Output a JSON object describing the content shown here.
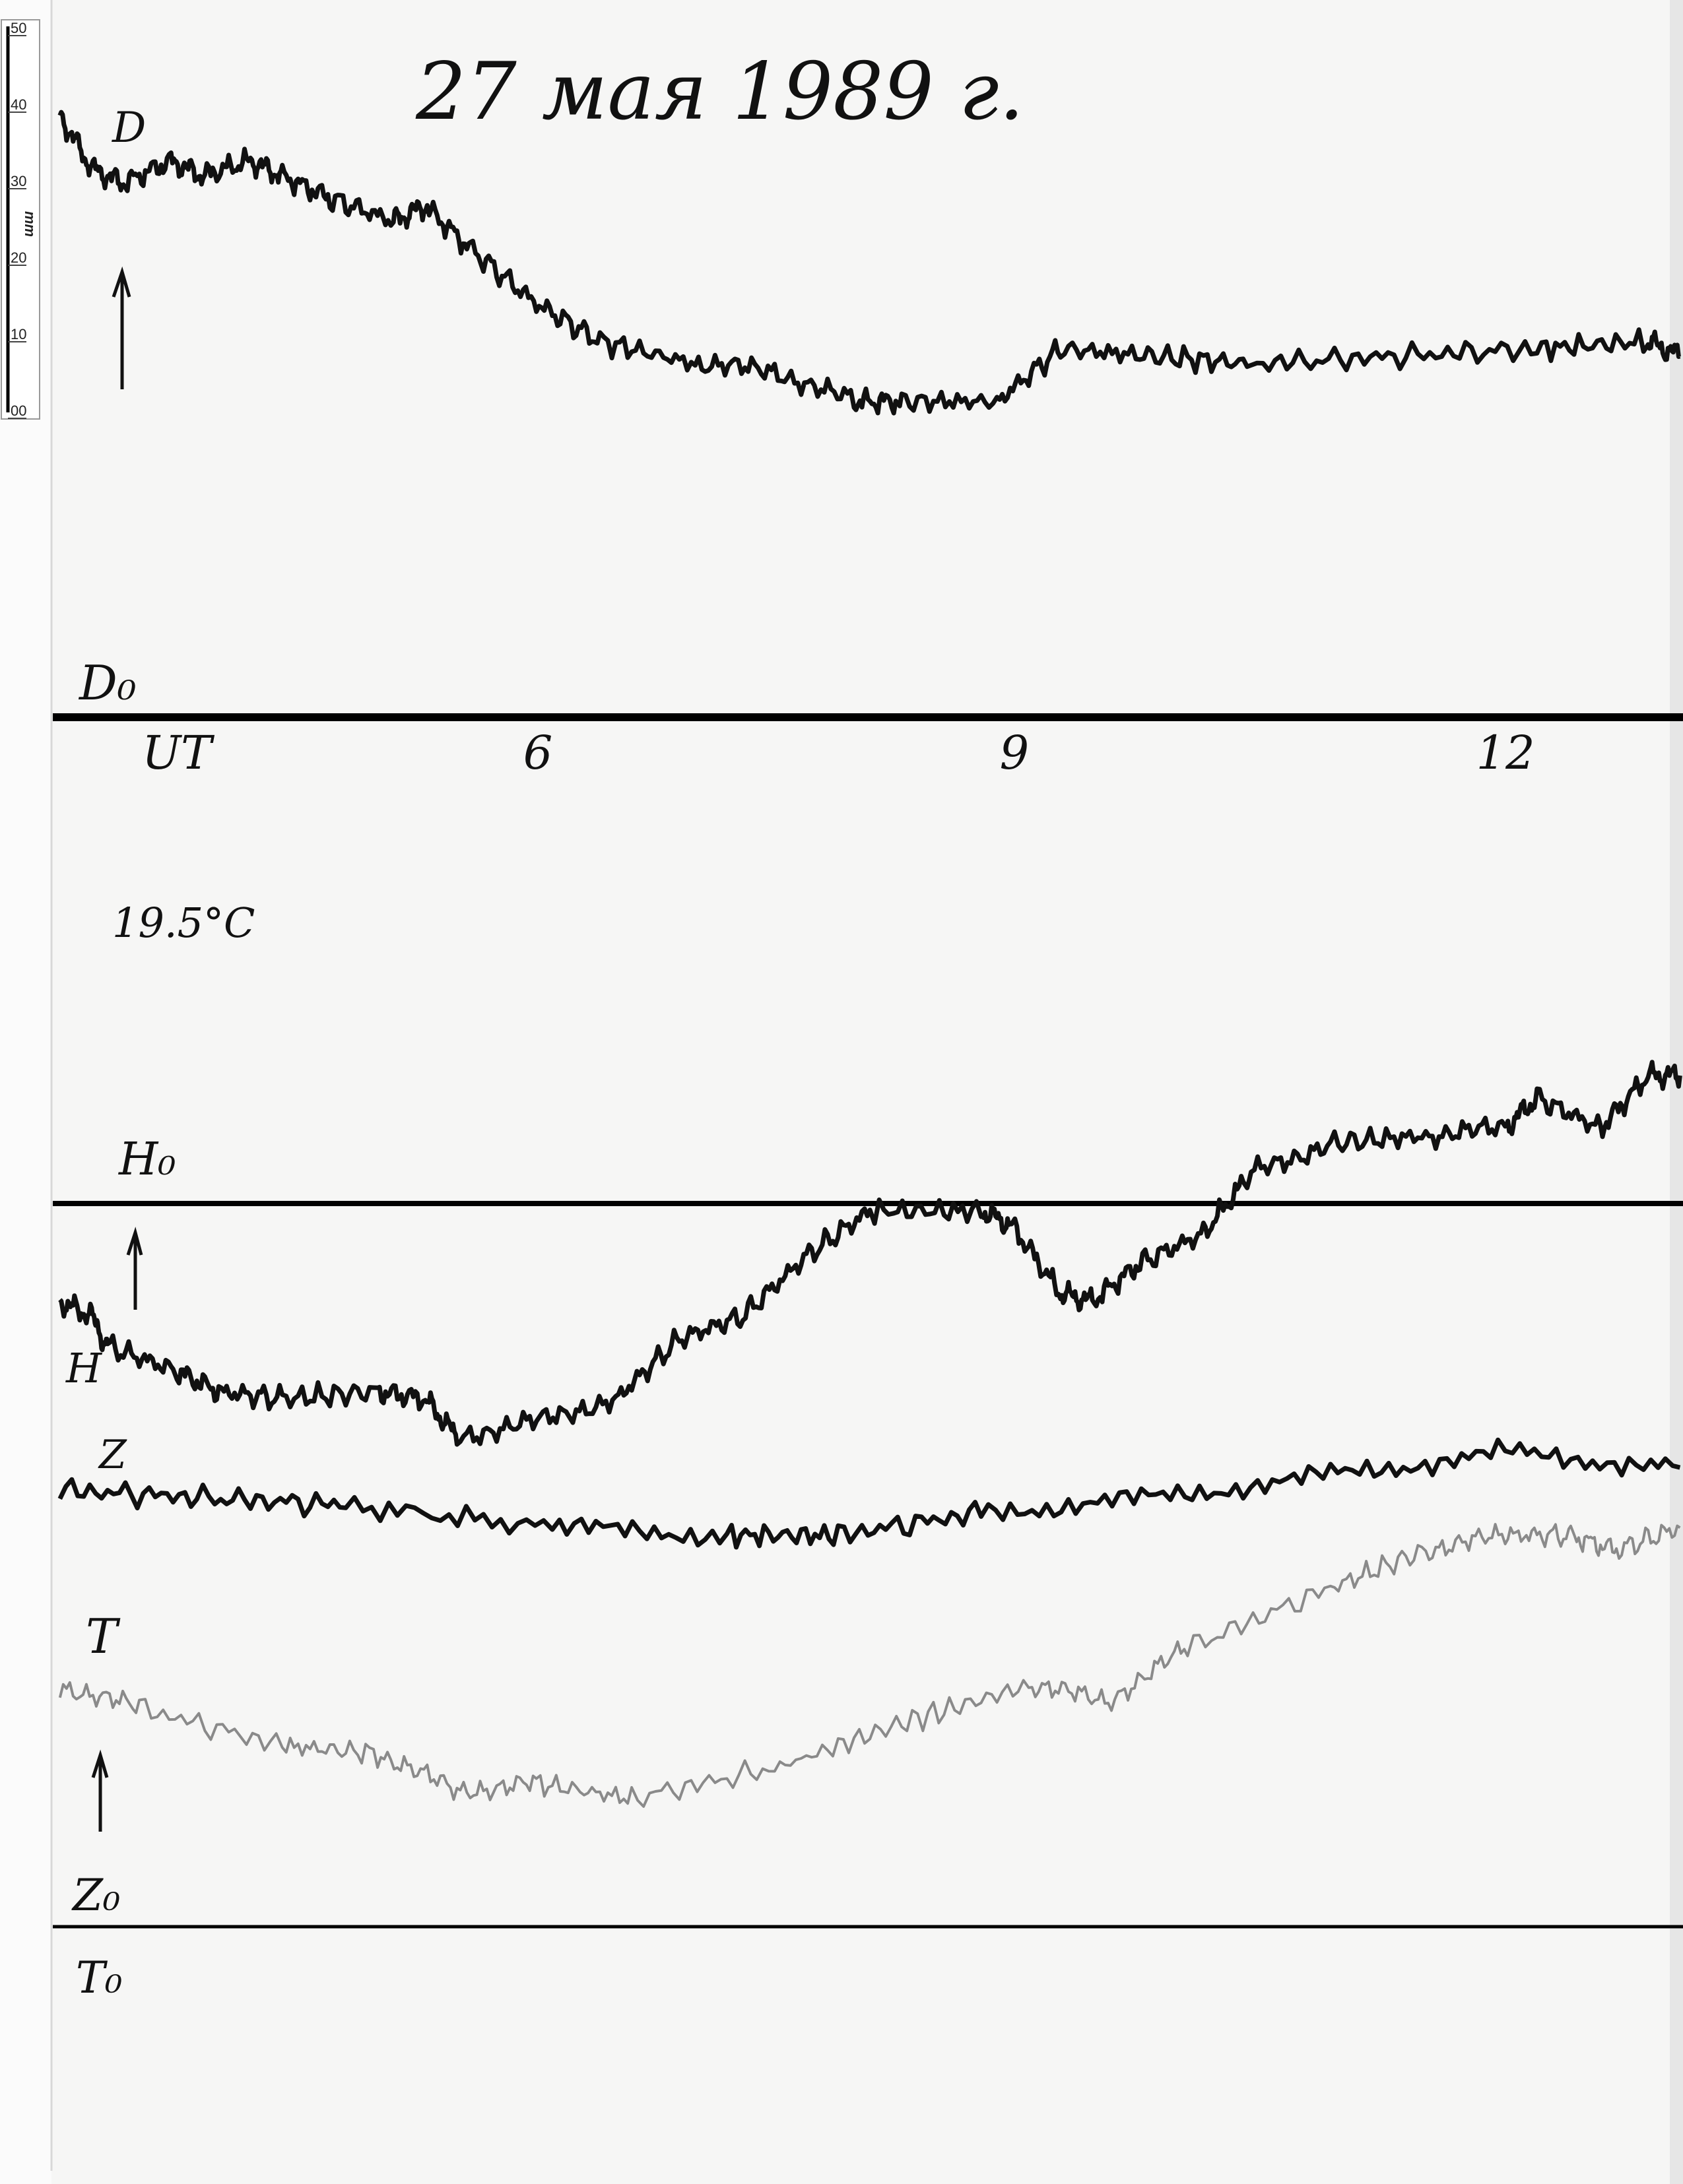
{
  "title": "27 мая 1989 г.",
  "ruler": {
    "ticks": [
      "50",
      "40",
      "30",
      "20",
      "10",
      "00"
    ],
    "unit": "mm"
  },
  "labels": {
    "d": "D",
    "d0": "D₀",
    "h0": "H₀",
    "h": "H",
    "z": "Z",
    "t": "T",
    "z0": "Z₀",
    "t0": "T₀",
    "temperature": "19.5°C"
  },
  "colors": {
    "paper": "#f7f7f6",
    "trace": "#111111",
    "t_trace": "#8a8a8a",
    "baseline": "#000000"
  },
  "chart_data": {
    "type": "line",
    "title": "27 мая 1989 г.",
    "xlabel": "UT",
    "x_tick_labels": [
      "UT",
      "6",
      "9",
      "12"
    ],
    "x_ticks": [
      6,
      9,
      12
    ],
    "xlim": [
      3,
      13.2
    ],
    "y_unit": "mm",
    "grid": false,
    "series": [
      {
        "name": "D",
        "baseline": "D₀",
        "x": [
          3.0,
          3.2,
          3.4,
          3.7,
          3.9,
          4.2,
          4.4,
          4.7,
          5.1,
          5.3,
          5.6,
          6.0,
          6.4,
          7.0,
          7.5,
          8.0,
          8.3,
          8.9,
          9.3,
          9.9,
          10.5,
          11.4,
          12.3,
          13.0,
          13.2
        ],
        "y": [
          80,
          73,
          71,
          74,
          72,
          74,
          72,
          69,
          66,
          68,
          62,
          55,
          50,
          47,
          46,
          42,
          42,
          42,
          49,
          48,
          47,
          48,
          49,
          50,
          48
        ]
      },
      {
        "name": "H",
        "baseline": "H₀",
        "x": [
          3.0,
          3.2,
          3.3,
          3.7,
          4.0,
          4.4,
          5.0,
          5.3,
          5.5,
          6.0,
          6.5,
          6.9,
          7.3,
          7.7,
          8.1,
          8.8,
          9.0,
          9.3,
          9.5,
          9.8,
          10.2,
          10.5,
          11.0,
          11.6,
          12.1,
          12.3,
          12.7,
          13.0,
          13.2
        ],
        "y": [
          -13,
          -15,
          -19,
          -22,
          -25,
          -26,
          -25,
          -26,
          -31,
          -29,
          -26,
          -18,
          -15,
          -7,
          -1,
          -1,
          -3,
          -12,
          -13,
          -8,
          -4,
          4,
          8,
          9,
          10,
          14,
          10,
          17,
          17
        ]
      },
      {
        "name": "Z",
        "baseline": "Z₀",
        "x": [
          3.0,
          3.9,
          4.8,
          6.1,
          7.2,
          7.9,
          8.8,
          9.9,
          11.0,
          12.1,
          13.2
        ],
        "y": [
          58,
          57,
          56,
          53,
          52,
          52,
          55,
          57,
          60,
          63,
          61
        ]
      },
      {
        "name": "T",
        "baseline": "T₀",
        "x": [
          3.0,
          3.5,
          4.4,
          5.0,
          5.5,
          6.0,
          6.6,
          7.5,
          8.3,
          9.1,
          9.6,
          10.1,
          11.0,
          11.6,
          12.1,
          12.5,
          12.8,
          13.2
        ],
        "y": [
          32,
          29,
          24,
          23,
          18,
          19,
          17,
          21,
          27,
          32,
          30,
          37,
          45,
          50,
          52,
          52,
          50,
          53
        ]
      }
    ]
  }
}
